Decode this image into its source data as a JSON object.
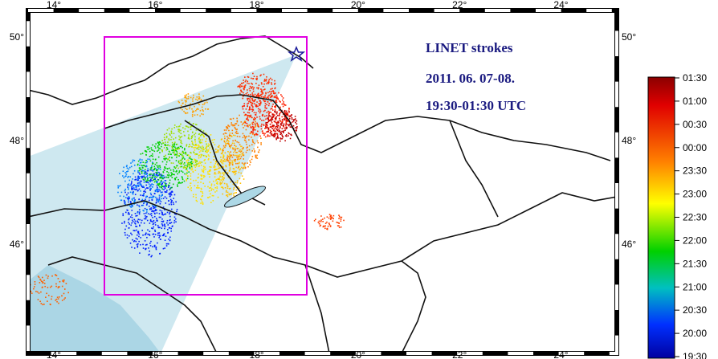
{
  "map": {
    "lon_labels": [
      "14°",
      "16°",
      "18°",
      "20°",
      "22°",
      "24°"
    ],
    "lat_labels": [
      "50°",
      "48°",
      "46°"
    ],
    "title_lines": [
      "LINET strokes",
      "2011. 06. 07-08.",
      "19:30-01:30 UTC"
    ]
  },
  "legend": {
    "labels": [
      "01:30",
      "01:00",
      "00:30",
      "00:00",
      "23:30",
      "23:00",
      "22:30",
      "22:00",
      "21:30",
      "21:00",
      "20:30",
      "20:00",
      "19:30"
    ]
  }
}
